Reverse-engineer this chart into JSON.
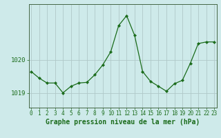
{
  "x": [
    0,
    1,
    2,
    3,
    4,
    5,
    6,
    7,
    8,
    9,
    10,
    11,
    12,
    13,
    14,
    15,
    16,
    17,
    18,
    19,
    20,
    21,
    22,
    23
  ],
  "y": [
    1019.65,
    1019.45,
    1019.3,
    1019.3,
    1019.0,
    1019.2,
    1019.3,
    1019.32,
    1019.55,
    1019.85,
    1020.25,
    1021.05,
    1021.35,
    1020.75,
    1019.65,
    1019.35,
    1019.2,
    1019.05,
    1019.28,
    1019.38,
    1019.9,
    1020.5,
    1020.55,
    1020.55
  ],
  "line_color": "#1a6b1a",
  "marker_color": "#1a6b1a",
  "bg_color": "#ceeaea",
  "grid_color": "#b0c8c8",
  "label_color": "#1a6b1a",
  "xlabel": "Graphe pression niveau de la mer (hPa)",
  "ytick_labels": [
    "1019",
    "1020"
  ],
  "ytick_values": [
    1019.0,
    1020.0
  ],
  "ylim_min": 1018.55,
  "ylim_max": 1021.7,
  "xlim_min": -0.3,
  "xlim_max": 23.3,
  "xtick_labels": [
    "0",
    "1",
    "2",
    "3",
    "4",
    "5",
    "6",
    "7",
    "8",
    "9",
    "10",
    "11",
    "12",
    "13",
    "14",
    "15",
    "16",
    "17",
    "18",
    "19",
    "20",
    "21",
    "22",
    "23"
  ],
  "xlabel_fontsize": 7.0,
  "ytick_fontsize": 6.5,
  "xtick_fontsize": 5.5,
  "fig_width": 3.2,
  "fig_height": 2.0,
  "dpi": 100
}
